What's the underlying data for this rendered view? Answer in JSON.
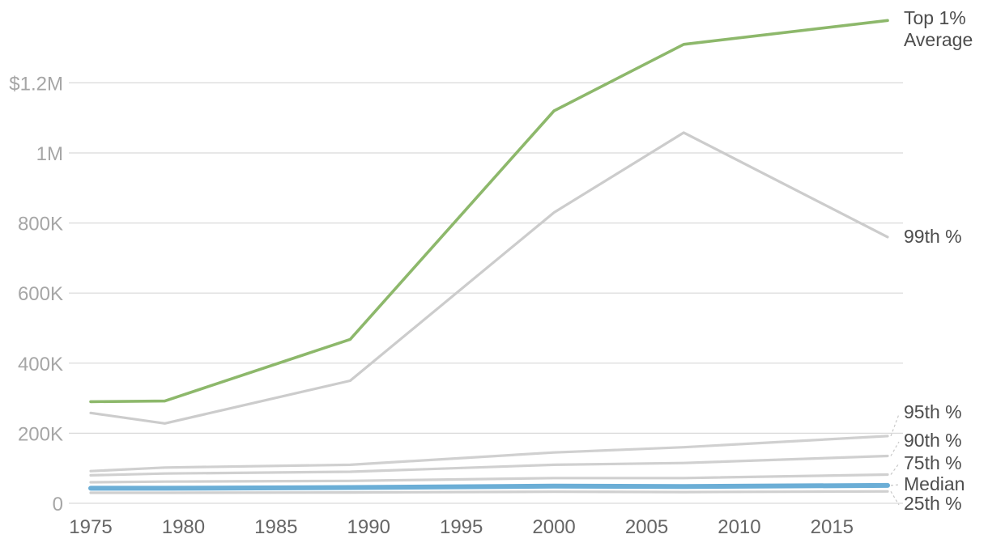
{
  "chart_data": {
    "type": "line",
    "title": "",
    "xlabel": "",
    "ylabel": "",
    "x": [
      1975,
      1979,
      1989,
      2000,
      2007,
      2018
    ],
    "xlim": [
      1973,
      2020
    ],
    "ylim": [
      0,
      1400000
    ],
    "x_ticks": [
      {
        "value": 1975,
        "label": "1975"
      },
      {
        "value": 1980,
        "label": "1980"
      },
      {
        "value": 1985,
        "label": "1985"
      },
      {
        "value": 1990,
        "label": "1990"
      },
      {
        "value": 1995,
        "label": "1995"
      },
      {
        "value": 2000,
        "label": "2000"
      },
      {
        "value": 2005,
        "label": "2005"
      },
      {
        "value": 2010,
        "label": "2010"
      },
      {
        "value": 2015,
        "label": "2015"
      }
    ],
    "y_ticks": [
      {
        "value": 0,
        "label": "0"
      },
      {
        "value": 200000,
        "label": "200K"
      },
      {
        "value": 400000,
        "label": "400K"
      },
      {
        "value": 600000,
        "label": "600K"
      },
      {
        "value": 800000,
        "label": "800K"
      },
      {
        "value": 1000000,
        "label": "1M"
      },
      {
        "value": 1200000,
        "label": "$1.2M"
      }
    ],
    "grid": true,
    "series": [
      {
        "name": "25th %",
        "color": "#d0d0d0",
        "values": [
          30000,
          30000,
          31000,
          33000,
          32000,
          34000
        ]
      },
      {
        "name": "75th %",
        "color": "#d0d0d0",
        "values": [
          60000,
          62000,
          64000,
          72000,
          72000,
          82000
        ]
      },
      {
        "name": "90th %",
        "color": "#d0d0d0",
        "values": [
          80000,
          85000,
          90000,
          110000,
          115000,
          135000
        ]
      },
      {
        "name": "95th %",
        "color": "#d0d0d0",
        "values": [
          92000,
          102000,
          110000,
          145000,
          160000,
          192000
        ]
      },
      {
        "name": "99th %",
        "color": "#cccccc",
        "values": [
          258000,
          228000,
          350000,
          830000,
          1058000,
          760000
        ]
      },
      {
        "name": "Median",
        "color": "#6baed6",
        "values": [
          43000,
          43000,
          45000,
          49000,
          48000,
          51000
        ]
      },
      {
        "name": "Top 1%\nAverage",
        "color": "#8db86b",
        "values": [
          290000,
          292000,
          468000,
          1120000,
          1310000,
          1378000
        ]
      }
    ]
  }
}
